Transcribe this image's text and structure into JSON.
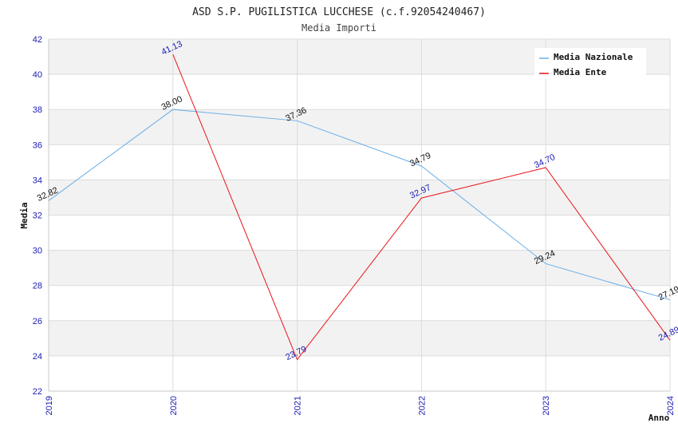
{
  "chart_data": {
    "type": "line",
    "title": "ASD S.P. PUGILISTICA LUCCHESE (c.f.92054240467)",
    "subtitle": "Media Importi",
    "xlabel": "Anno",
    "ylabel": "Media",
    "x": [
      "2019",
      "2020",
      "2021",
      "2022",
      "2023",
      "2024"
    ],
    "ylim": [
      22,
      42
    ],
    "yticks": [
      22,
      24,
      26,
      28,
      30,
      32,
      34,
      36,
      38,
      40,
      42
    ],
    "grid": true,
    "legend_position": "top-right",
    "series": [
      {
        "name": "Media Nazionale",
        "color": "#6aaee8",
        "label_color": "#111111",
        "values": [
          32.82,
          38.0,
          37.36,
          34.79,
          29.24,
          27.19
        ],
        "labels": [
          "32.82",
          "38.00",
          "37.36",
          "34.79",
          "29.24",
          "27.19"
        ]
      },
      {
        "name": "Media Ente",
        "color": "#e8141a",
        "label_color": "#1b1bb3",
        "values": [
          null,
          41.13,
          23.79,
          32.97,
          34.7,
          24.89
        ],
        "labels": [
          null,
          "41.13",
          "23.79",
          "32.97",
          "34.70",
          "24.89"
        ]
      }
    ]
  }
}
